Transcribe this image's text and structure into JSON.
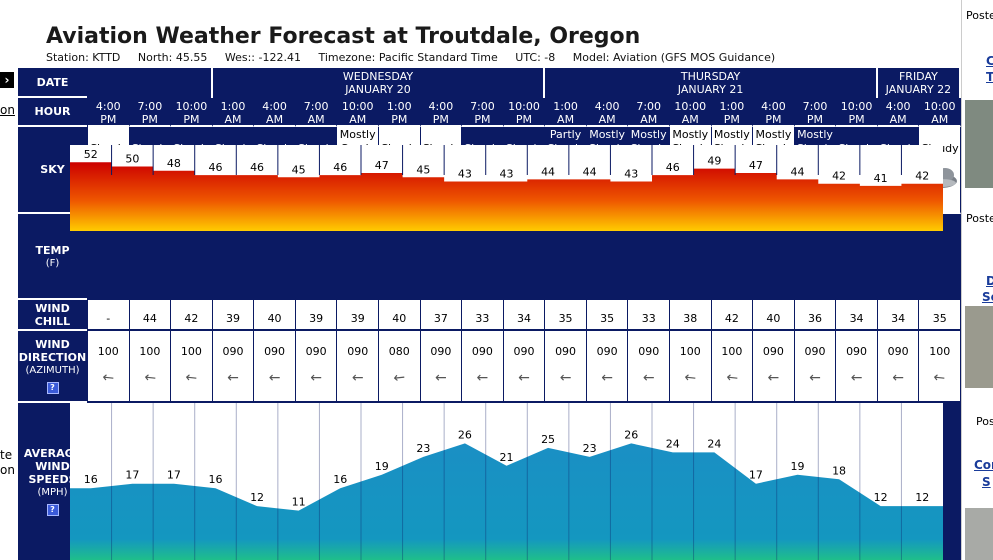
{
  "title": "Aviation Weather Forecast at Troutdale, Oregon",
  "station_line": [
    "Station: KTTD",
    "North: 45.55",
    "Wes:: -122.41",
    "Timezone: Pacific Standard Time",
    "UTC: -8",
    "Model: Aviation (GFS MOS Guidance)"
  ],
  "left_fragments": [
    "on",
    "te",
    "on"
  ],
  "right_fragments": {
    "poste1": "Poste",
    "link1a": "C",
    "link1b": "T",
    "poste2": "Poste",
    "link2a": "D",
    "link2b": "Se",
    "poste3": "Pos",
    "link3a": "Cor",
    "link3b": "S"
  },
  "labels": {
    "date": "DATE",
    "hour": "HOUR",
    "sky": "SKY",
    "temp": "TEMP",
    "temp_unit": "(F)",
    "windchill_a": "WIND",
    "windchill_b": "CHILL",
    "winddir_a": "WIND",
    "winddir_b": "DIRECTION",
    "winddir_c": "(AZIMUTH)",
    "windspeed_a": "AVERAGE",
    "windspeed_b": "WIND",
    "windspeed_c": "SPEEDS",
    "windspeed_d": "(MPH)",
    "help": "?"
  },
  "days": [
    {
      "name": "",
      "date": "",
      "span": 3
    },
    {
      "name": "WEDNESDAY",
      "date": "JANUARY 20",
      "span": 8
    },
    {
      "name": "THURSDAY",
      "date": "JANUARY 21",
      "span": 8
    },
    {
      "name": "FRIDAY",
      "date": "JANUARY 22",
      "span": 2
    }
  ],
  "hours": [
    {
      "t": "4:00",
      "ap": "PM"
    },
    {
      "t": "7:00",
      "ap": "PM"
    },
    {
      "t": "10:00",
      "ap": "PM"
    },
    {
      "t": "1:00",
      "ap": "AM"
    },
    {
      "t": "4:00",
      "ap": "AM"
    },
    {
      "t": "7:00",
      "ap": "AM"
    },
    {
      "t": "10:00",
      "ap": "AM"
    },
    {
      "t": "1:00",
      "ap": "PM"
    },
    {
      "t": "4:00",
      "ap": "PM"
    },
    {
      "t": "7:00",
      "ap": "PM"
    },
    {
      "t": "10:00",
      "ap": "PM"
    },
    {
      "t": "1:00",
      "ap": "AM"
    },
    {
      "t": "4:00",
      "ap": "AM"
    },
    {
      "t": "7:00",
      "ap": "AM"
    },
    {
      "t": "10:00",
      "ap": "AM"
    },
    {
      "t": "1:00",
      "ap": "PM"
    },
    {
      "t": "4:00",
      "ap": "PM"
    },
    {
      "t": "7:00",
      "ap": "PM"
    },
    {
      "t": "10:00",
      "ap": "PM"
    },
    {
      "t": "4:00",
      "ap": "AM"
    },
    {
      "t": "10:00",
      "ap": "AM"
    }
  ],
  "sky": [
    {
      "l1": "",
      "l2": "Cloudy",
      "night": false,
      "icon": "cloud"
    },
    {
      "l1": "",
      "l2": "Cloudy",
      "night": true,
      "icon": "cloud"
    },
    {
      "l1": "",
      "l2": "Cloudy",
      "night": true,
      "icon": "cloud"
    },
    {
      "l1": "",
      "l2": "Cloudy",
      "night": true,
      "icon": "cloud"
    },
    {
      "l1": "",
      "l2": "Cloudy",
      "night": true,
      "icon": "cloud"
    },
    {
      "l1": "",
      "l2": "Cloudy",
      "night": true,
      "icon": "cloud"
    },
    {
      "l1": "Mostly",
      "l2": "Coudy",
      "night": false,
      "icon": "sun-cloud"
    },
    {
      "l1": "",
      "l2": "Cloudy",
      "night": false,
      "icon": "cloud"
    },
    {
      "l1": "",
      "l2": "Cloudy",
      "night": false,
      "icon": "cloud"
    },
    {
      "l1": "",
      "l2": "Cloudy",
      "night": true,
      "icon": "cloud"
    },
    {
      "l1": "",
      "l2": "Cloudy",
      "night": true,
      "icon": "cloud"
    },
    {
      "l1": "Partly",
      "l2": "Cloudy",
      "night": true,
      "icon": "moon-cloud"
    },
    {
      "l1": "Mostly",
      "l2": "Cloudy",
      "night": true,
      "icon": "moon-cloud"
    },
    {
      "l1": "Mostly",
      "l2": "Cloudy",
      "night": true,
      "icon": "moon-cloud"
    },
    {
      "l1": "Mostly",
      "l2": "Cloudy",
      "night": false,
      "icon": "sun-cloud"
    },
    {
      "l1": "Mostly",
      "l2": "Cloudy",
      "night": false,
      "icon": "sun-cloud"
    },
    {
      "l1": "Mostly",
      "l2": "Cloudy",
      "night": false,
      "icon": "sun-cloud"
    },
    {
      "l1": "Mostly",
      "l2": "Cloudy",
      "night": true,
      "icon": "moon-cloud"
    },
    {
      "l1": "",
      "l2": "Cloudy",
      "night": true,
      "icon": "cloud"
    },
    {
      "l1": "",
      "l2": "Cloudy",
      "night": true,
      "icon": "cloud"
    },
    {
      "l1": "",
      "l2": "Cloudy",
      "night": false,
      "icon": "cloud"
    }
  ],
  "temps": [
    52,
    50,
    48,
    46,
    46,
    45,
    46,
    47,
    45,
    43,
    43,
    44,
    44,
    43,
    46,
    49,
    47,
    44,
    42,
    41,
    42
  ],
  "temp_axis": [
    20,
    60
  ],
  "wind_chill": [
    "-",
    "44",
    "42",
    "39",
    "40",
    "39",
    "39",
    "40",
    "37",
    "33",
    "34",
    "35",
    "35",
    "33",
    "38",
    "42",
    "40",
    "36",
    "34",
    "34",
    "35"
  ],
  "wind_dir": [
    "100",
    "100",
    "100",
    "090",
    "090",
    "090",
    "090",
    "080",
    "090",
    "090",
    "090",
    "090",
    "090",
    "090",
    "100",
    "100",
    "090",
    "090",
    "090",
    "090",
    "100"
  ],
  "wind_speed": [
    16,
    17,
    17,
    16,
    12,
    11,
    16,
    19,
    23,
    26,
    21,
    25,
    23,
    26,
    24,
    24,
    17,
    19,
    18,
    12,
    12
  ],
  "wind_axis": [
    0,
    35
  ],
  "colors": {
    "header_bg": "#0b1a63",
    "temp_top": "#cc0000",
    "temp_bottom": "#ffcc00",
    "wind_fill": "#1a8fc4",
    "wind_bottom": "#1fbf8a"
  }
}
